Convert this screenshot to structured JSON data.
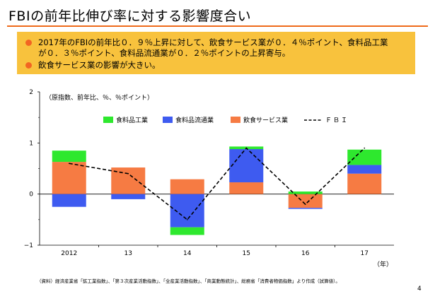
{
  "slide": {
    "title": "FBIの前年比伸び率に対する影響度合い",
    "bullets": [
      "2017年のFBIの前年比０．９％上昇に対して、飲食サービス業が０．４％ポイント、食料品工業\nが０．３％ポイント、食料品流通業が０．２％ポイントの上昇寄与。",
      "飲食サービス業の影響が大きい。"
    ],
    "source_note": "（資料）経済産業省「鉱工業指数」、「第３次産業活動指数」、「全産業活動指数」、「商業動態統計」、総務省「消費者物価指数」より作成（試算値）。",
    "page_number": "4"
  },
  "colors": {
    "title_rule": "#ef6a1a",
    "callout_bg": "#f8c23d",
    "bullet_dot": "#f26522"
  },
  "chart_data": {
    "type": "bar",
    "stacked": true,
    "unit_note": "（原指数、前年比、％、％ポイント）",
    "categories": [
      "2012",
      "13",
      "14",
      "15",
      "16",
      "17"
    ],
    "xlabel_suffix": "（年）",
    "ylim": [
      -1,
      2
    ],
    "yticks": [
      "2",
      "1",
      "0",
      "−1"
    ],
    "series": [
      {
        "name": "食料品工業",
        "color": "#2ee82e",
        "values": [
          0.22,
          0.0,
          -0.15,
          0.05,
          0.05,
          0.3
        ]
      },
      {
        "name": "食料品流通業",
        "color": "#3e5bf0",
        "values": [
          -0.25,
          -0.1,
          -0.65,
          0.65,
          -0.02,
          0.17
        ]
      },
      {
        "name": "飲食サービス業",
        "color": "#f67b43",
        "values": [
          0.63,
          0.52,
          0.29,
          0.23,
          -0.27,
          0.4
        ]
      }
    ],
    "line": {
      "name": "ＦＢＩ",
      "color": "#000000",
      "style": "dashed",
      "values": [
        0.6,
        0.4,
        -0.5,
        0.9,
        -0.2,
        0.9
      ]
    },
    "legend_position": "top",
    "grid": false
  }
}
